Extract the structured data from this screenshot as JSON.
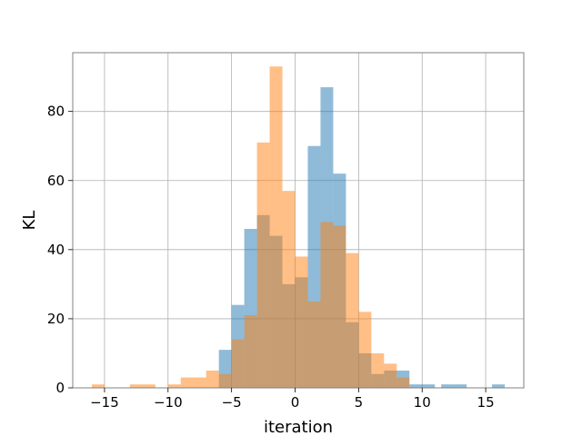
{
  "chart_data": {
    "type": "bar",
    "subtype": "overlaid histogram",
    "title": "",
    "xlabel": "iteration",
    "ylabel": "KL",
    "xlim": [
      -17.5,
      18
    ],
    "ylim": [
      0,
      97
    ],
    "xticks": [
      -15,
      -10,
      -5,
      0,
      5,
      10,
      15
    ],
    "yticks": [
      0,
      20,
      40,
      60,
      80
    ],
    "grid": true,
    "legend": "none",
    "series": [
      {
        "color": "#1f77b4",
        "alpha": 0.5,
        "bins": [
          {
            "x0": -6.0,
            "x1": -5.0,
            "count": 11
          },
          {
            "x0": -5.0,
            "x1": -4.0,
            "count": 24
          },
          {
            "x0": -4.0,
            "x1": -3.0,
            "count": 46
          },
          {
            "x0": -3.0,
            "x1": -2.0,
            "count": 50
          },
          {
            "x0": -2.0,
            "x1": -1.0,
            "count": 44
          },
          {
            "x0": -1.0,
            "x1": 0.0,
            "count": 30
          },
          {
            "x0": 0.0,
            "x1": 1.0,
            "count": 32
          },
          {
            "x0": 1.0,
            "x1": 2.0,
            "count": 70
          },
          {
            "x0": 2.0,
            "x1": 3.0,
            "count": 87
          },
          {
            "x0": 3.0,
            "x1": 4.0,
            "count": 62
          },
          {
            "x0": 4.0,
            "x1": 5.0,
            "count": 19
          },
          {
            "x0": 5.0,
            "x1": 6.0,
            "count": 10
          },
          {
            "x0": 6.0,
            "x1": 7.0,
            "count": 4
          },
          {
            "x0": 7.0,
            "x1": 8.0,
            "count": 5
          },
          {
            "x0": 8.0,
            "x1": 9.0,
            "count": 5
          },
          {
            "x0": 9.0,
            "x1": 10.0,
            "count": 1
          },
          {
            "x0": 10.0,
            "x1": 11.0,
            "count": 1
          },
          {
            "x0": 11.5,
            "x1": 12.5,
            "count": 1
          },
          {
            "x0": 12.5,
            "x1": 13.5,
            "count": 1
          },
          {
            "x0": 15.5,
            "x1": 16.5,
            "count": 1
          }
        ]
      },
      {
        "color": "#ff7f0e",
        "alpha": 0.5,
        "bins": [
          {
            "x0": -16.0,
            "x1": -15.0,
            "count": 1
          },
          {
            "x0": -13.0,
            "x1": -12.0,
            "count": 1
          },
          {
            "x0": -12.0,
            "x1": -11.0,
            "count": 1
          },
          {
            "x0": -10.0,
            "x1": -9.0,
            "count": 1
          },
          {
            "x0": -9.0,
            "x1": -8.0,
            "count": 3
          },
          {
            "x0": -8.0,
            "x1": -7.0,
            "count": 3
          },
          {
            "x0": -7.0,
            "x1": -6.0,
            "count": 5
          },
          {
            "x0": -6.0,
            "x1": -5.0,
            "count": 4
          },
          {
            "x0": -5.0,
            "x1": -4.0,
            "count": 14
          },
          {
            "x0": -4.0,
            "x1": -3.0,
            "count": 21
          },
          {
            "x0": -3.0,
            "x1": -2.0,
            "count": 71
          },
          {
            "x0": -2.0,
            "x1": -1.0,
            "count": 93
          },
          {
            "x0": -1.0,
            "x1": 0.0,
            "count": 57
          },
          {
            "x0": 0.0,
            "x1": 1.0,
            "count": 38
          },
          {
            "x0": 1.0,
            "x1": 2.0,
            "count": 25
          },
          {
            "x0": 2.0,
            "x1": 3.0,
            "count": 48
          },
          {
            "x0": 3.0,
            "x1": 4.0,
            "count": 47
          },
          {
            "x0": 4.0,
            "x1": 5.0,
            "count": 39
          },
          {
            "x0": 5.0,
            "x1": 6.0,
            "count": 22
          },
          {
            "x0": 6.0,
            "x1": 7.0,
            "count": 10
          },
          {
            "x0": 7.0,
            "x1": 8.0,
            "count": 7
          },
          {
            "x0": 8.0,
            "x1": 9.0,
            "count": 3
          }
        ]
      }
    ]
  }
}
